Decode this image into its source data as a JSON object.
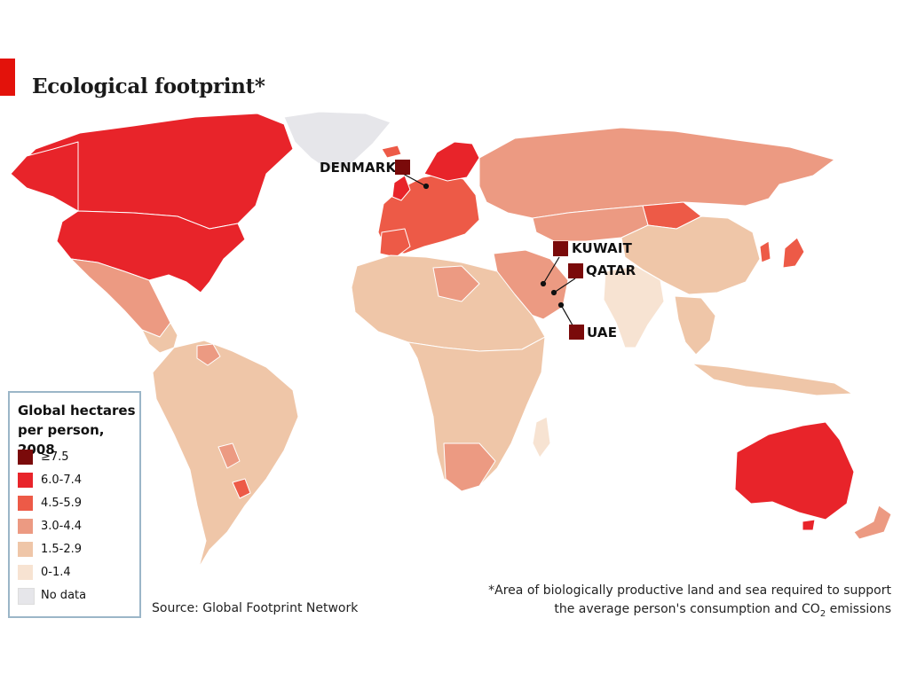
{
  "title": "Ecological footprint*",
  "callouts": [
    {
      "label": "DENMARK",
      "color": "#7a0a0a"
    },
    {
      "label": "KUWAIT",
      "color": "#7a0a0a"
    },
    {
      "label": "QATAR",
      "color": "#7a0a0a"
    },
    {
      "label": "UAE",
      "color": "#7a0a0a"
    }
  ],
  "legend": {
    "title_line1": "Global hectares",
    "title_line2": "per person, 2008",
    "items": [
      {
        "label": "≥7.5",
        "color": "#7a0a0a"
      },
      {
        "label": "6.0-7.4",
        "color": "#e8242a"
      },
      {
        "label": "4.5-5.9",
        "color": "#ed5a47"
      },
      {
        "label": "3.0-4.4",
        "color": "#ec9a82"
      },
      {
        "label": "1.5-2.9",
        "color": "#efc6a8"
      },
      {
        "label": "0-1.4",
        "color": "#f7e3d2"
      },
      {
        "label": "No data",
        "color": "#e6e6ea"
      }
    ]
  },
  "source": "Source: Global Footprint Network",
  "footnote_line1": "*Area of biologically productive land and sea required to support",
  "footnote_line2_pre": "the average person's consumption and CO",
  "footnote_sub": "2",
  "footnote_line2_post": " emissions"
}
